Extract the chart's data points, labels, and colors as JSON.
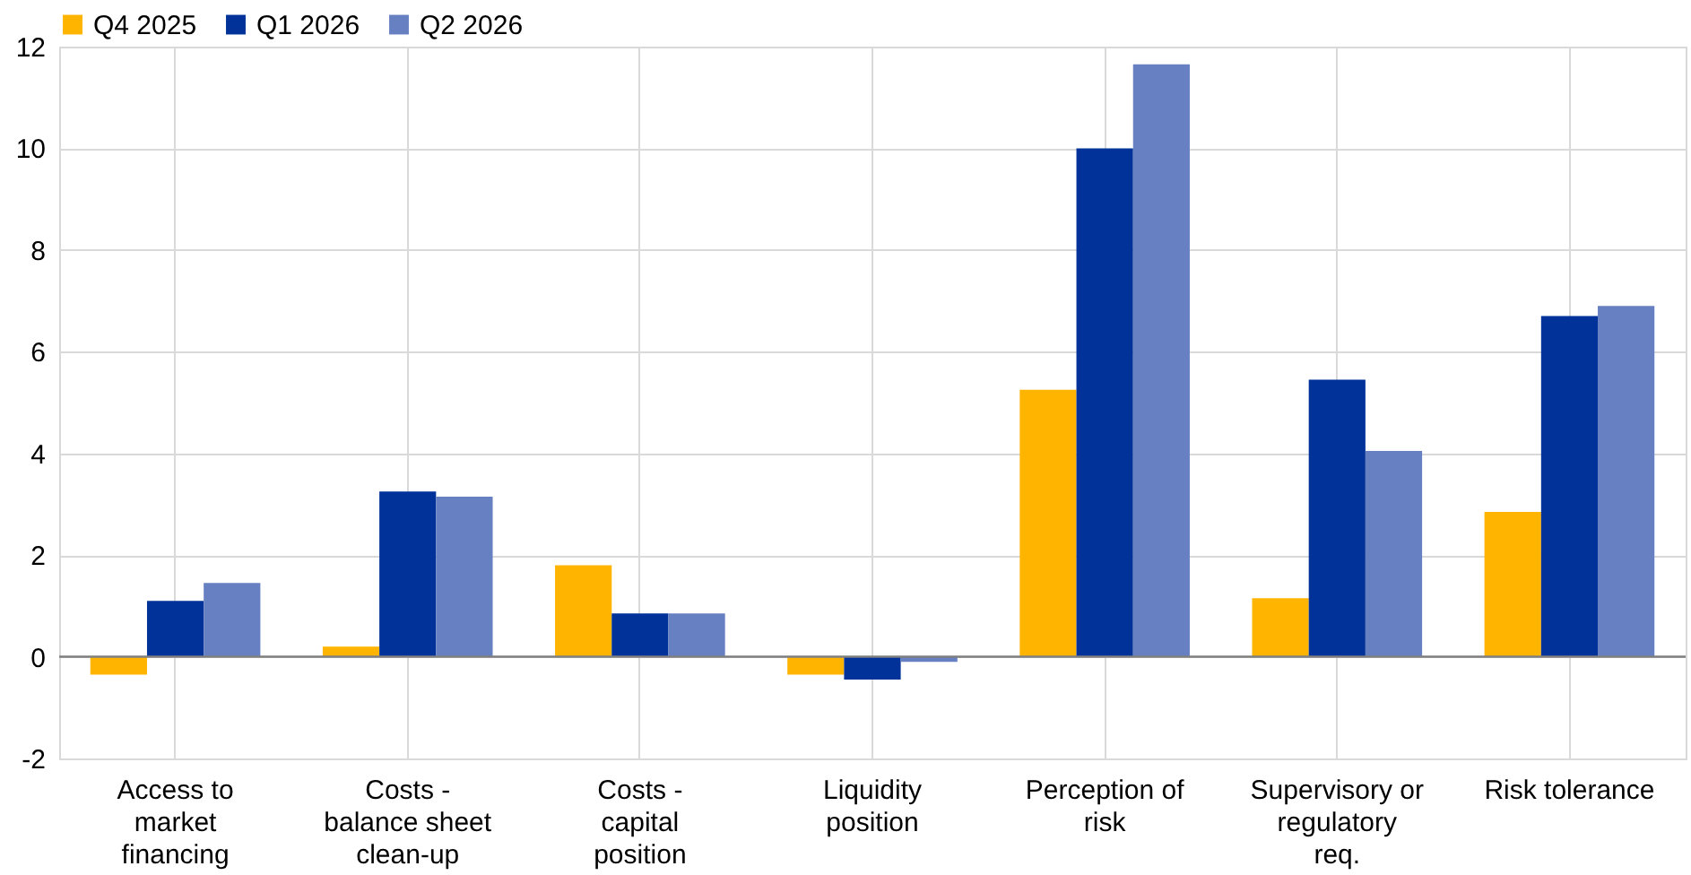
{
  "chart_data": {
    "type": "bar",
    "categories": [
      "Access to market financing",
      "Costs - balance sheet clean-up",
      "Costs - capital position",
      "Liquidity position",
      "Perception of risk",
      "Supervisory or regulatory req.",
      "Risk tolerance"
    ],
    "series": [
      {
        "name": "Q4 2025",
        "color": "#ffb400",
        "values": [
          -0.35,
          0.2,
          1.8,
          -0.35,
          5.25,
          1.15,
          2.85
        ]
      },
      {
        "name": "Q1 2026",
        "color": "#003299",
        "values": [
          1.1,
          3.25,
          0.85,
          -0.45,
          10.0,
          5.45,
          6.7
        ]
      },
      {
        "name": "Q2 2026",
        "color": "#6680c2",
        "values": [
          1.45,
          3.15,
          0.85,
          -0.1,
          11.65,
          4.05,
          6.9
        ]
      }
    ],
    "ylim": [
      -2,
      12
    ],
    "yticks": [
      -2,
      0,
      2,
      4,
      6,
      8,
      10,
      12
    ],
    "grid": true,
    "legend": "top left"
  }
}
